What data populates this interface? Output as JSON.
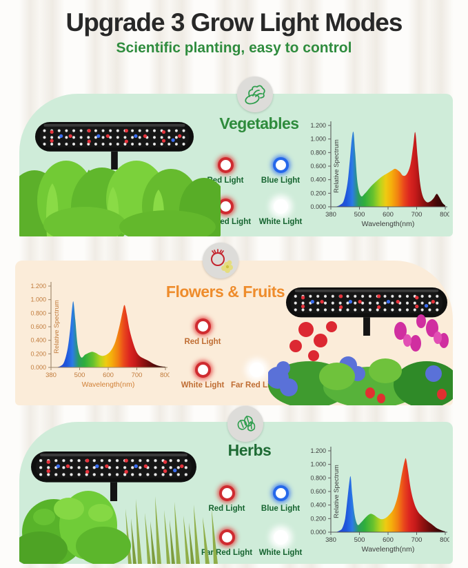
{
  "header": {
    "title": "Upgrade 3 Grow Light Modes",
    "subtitle": "Scientific planting, easy to control"
  },
  "colors": {
    "section_green_bg": "#cfecd9",
    "section_peach_bg": "#fbecd9",
    "title_dark": "#282828",
    "subtitle_green": "#2f8c3e",
    "green_label": "#15632f",
    "orange_label": "#bf6d33"
  },
  "sections": [
    {
      "id": "vegetables",
      "title": "Vegetables",
      "title_color": "#2e8b3c",
      "label_color": "#15632f",
      "icon": "lettuce-icon",
      "chart_side": "right",
      "lights": [
        {
          "label": "Red Light",
          "type": "red"
        },
        {
          "label": "Blue Light",
          "type": "blue"
        },
        {
          "label": "Far Red Light",
          "type": "red"
        },
        {
          "label": "White Light",
          "type": "white"
        }
      ]
    },
    {
      "id": "flowers-fruits",
      "title": "Flowers & Fruits",
      "title_color": "#ee8c2c",
      "label_color": "#bf6d33",
      "icon": "tomato-flower-icon",
      "chart_side": "left",
      "lights": [
        {
          "label": "Red Light",
          "type": "red"
        },
        {
          "label": "White Light",
          "type": "red"
        },
        {
          "label": "Far Red Light",
          "type": "white"
        }
      ]
    },
    {
      "id": "herbs",
      "title": "Herbs",
      "title_color": "#1e6b34",
      "label_color": "#15632f",
      "icon": "mint-leaves-icon",
      "chart_side": "right",
      "lights": [
        {
          "label": "Red Light",
          "type": "red"
        },
        {
          "label": "Blue Light",
          "type": "blue"
        },
        {
          "label": "Far Red Light",
          "type": "red"
        },
        {
          "label": "White Light",
          "type": "white"
        }
      ]
    }
  ],
  "chart_data": [
    {
      "type": "area",
      "name": "vegetables-spectrum",
      "xlabel": "Wavelength(nm)",
      "ylabel": "Relative Spectrum",
      "x_ticks": [
        380,
        500,
        600,
        700,
        800
      ],
      "y_ticks": [
        "0.000",
        "0.200",
        "0.400",
        "0.600",
        "0.800",
        "1.000",
        "1.200"
      ],
      "xlim": [
        380,
        800
      ],
      "ylim": [
        0,
        1.2
      ],
      "grid": false,
      "text_color": "#3c3c3c",
      "axis_color": "#5a5a5a",
      "x": [
        400,
        420,
        435,
        450,
        460,
        468,
        475,
        482,
        492,
        505,
        520,
        540,
        560,
        580,
        600,
        615,
        625,
        640,
        652,
        665,
        678,
        688,
        695,
        703,
        712,
        722,
        735,
        748,
        760,
        770,
        778,
        790,
        800
      ],
      "y": [
        0.0,
        0.03,
        0.1,
        0.35,
        0.7,
        1.0,
        1.1,
        0.8,
        0.35,
        0.16,
        0.2,
        0.3,
        0.38,
        0.45,
        0.5,
        0.54,
        0.56,
        0.52,
        0.46,
        0.48,
        0.62,
        0.9,
        1.1,
        0.75,
        0.35,
        0.15,
        0.07,
        0.08,
        0.13,
        0.19,
        0.15,
        0.06,
        0.02
      ]
    },
    {
      "type": "area",
      "name": "flowers-fruits-spectrum",
      "xlabel": "Wavelength(nm)",
      "ylabel": "Relative Spectrum",
      "x_ticks": [
        380,
        500,
        600,
        700,
        800
      ],
      "y_ticks": [
        "0.000",
        "0.200",
        "0.400",
        "0.600",
        "0.800",
        "1.000",
        "1.200"
      ],
      "xlim": [
        380,
        800
      ],
      "ylim": [
        0,
        1.2
      ],
      "grid": false,
      "text_color": "#c07a3a",
      "label_color": "#d07f35",
      "axis_color": "#9b8468",
      "x": [
        400,
        420,
        435,
        450,
        460,
        468,
        474,
        482,
        492,
        505,
        520,
        535,
        545,
        558,
        570,
        582,
        595,
        610,
        625,
        640,
        650,
        657,
        665,
        675,
        688,
        700,
        712,
        725,
        740,
        760,
        780,
        800
      ],
      "y": [
        0.0,
        0.02,
        0.08,
        0.28,
        0.55,
        0.85,
        0.97,
        0.7,
        0.32,
        0.15,
        0.19,
        0.22,
        0.23,
        0.21,
        0.18,
        0.17,
        0.19,
        0.25,
        0.38,
        0.62,
        0.82,
        0.92,
        0.78,
        0.55,
        0.35,
        0.22,
        0.16,
        0.13,
        0.1,
        0.05,
        0.02,
        0.01
      ]
    },
    {
      "type": "area",
      "name": "herbs-spectrum",
      "xlabel": "Wavelength(nm)",
      "ylabel": "Relative Spectrum",
      "x_ticks": [
        380,
        500,
        600,
        700,
        800
      ],
      "y_ticks": [
        "0.000",
        "0.200",
        "0.400",
        "0.600",
        "0.800",
        "1.000",
        "1.200"
      ],
      "xlim": [
        380,
        800
      ],
      "ylim": [
        0,
        1.2
      ],
      "grid": false,
      "text_color": "#3c3c3c",
      "axis_color": "#5a5a5a",
      "x": [
        400,
        415,
        428,
        440,
        450,
        457,
        463,
        470,
        480,
        492,
        505,
        518,
        530,
        540,
        552,
        565,
        578,
        592,
        605,
        620,
        635,
        648,
        658,
        663,
        670,
        680,
        692,
        705,
        718,
        730,
        742,
        755,
        770,
        785,
        800
      ],
      "y": [
        0.0,
        0.02,
        0.06,
        0.2,
        0.5,
        0.72,
        0.82,
        0.55,
        0.25,
        0.11,
        0.14,
        0.2,
        0.25,
        0.27,
        0.25,
        0.21,
        0.19,
        0.21,
        0.26,
        0.35,
        0.55,
        0.85,
        1.05,
        1.08,
        0.9,
        0.62,
        0.42,
        0.3,
        0.24,
        0.19,
        0.15,
        0.11,
        0.06,
        0.03,
        0.01
      ]
    }
  ]
}
